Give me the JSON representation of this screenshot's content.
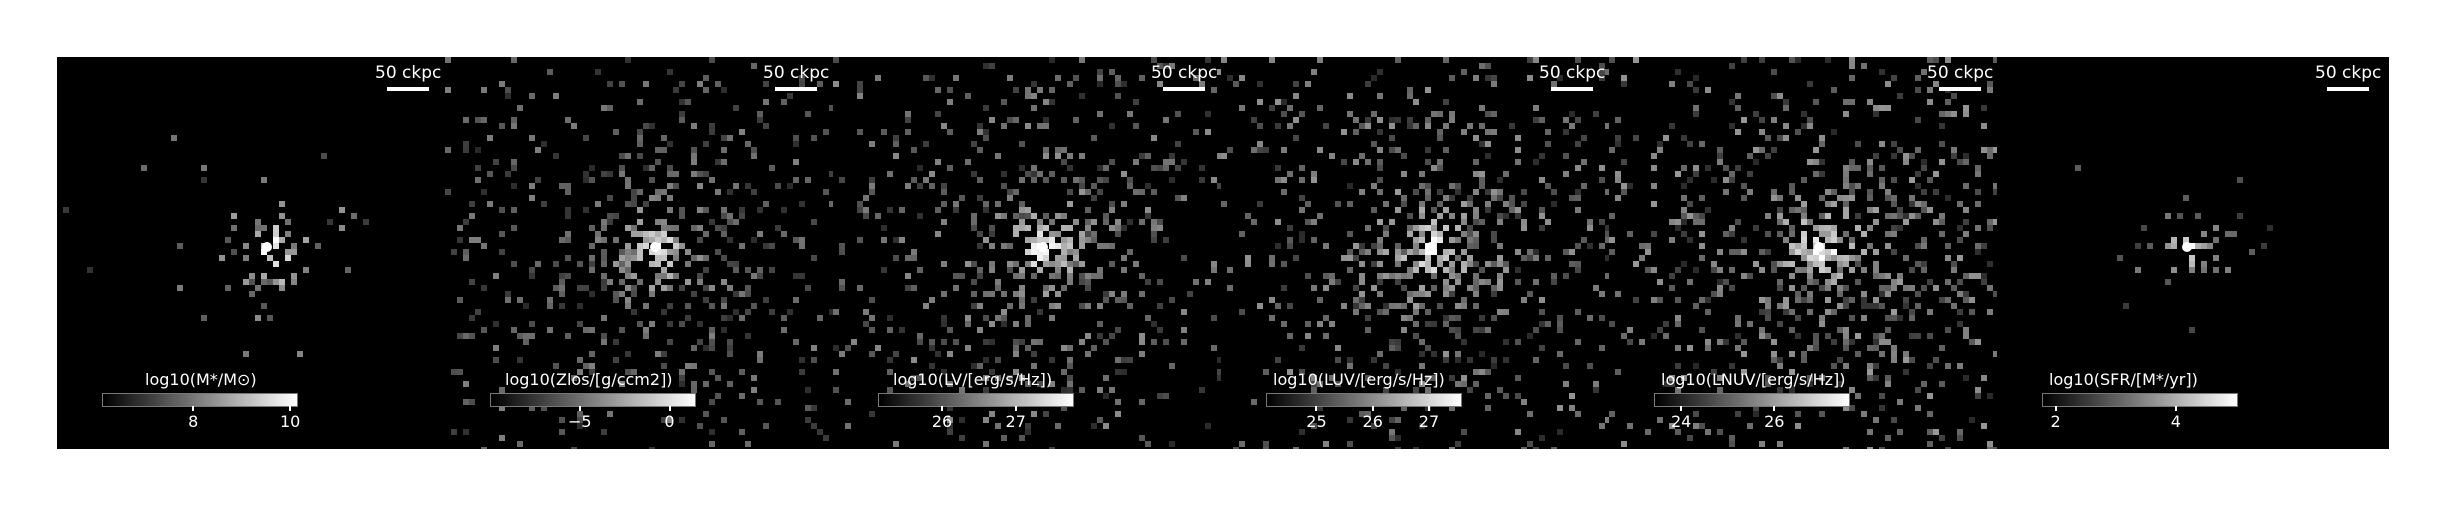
{
  "figure": {
    "panels": [
      {
        "scale_label": "50 ckpc",
        "colorbar_label": "log10(M*/M⊙)",
        "colorbar_ticks": [
          "8",
          "10"
        ],
        "tick_positions": [
          0.47,
          0.97
        ],
        "brightness": 0.9,
        "spread": 45,
        "clumpiness": 0.3
      },
      {
        "scale_label": "50 ckpc",
        "colorbar_label": "log10(Zlos/[g/ccm2])",
        "colorbar_ticks": [
          "−5",
          "0"
        ],
        "tick_positions": [
          0.44,
          0.88
        ],
        "brightness": 0.75,
        "spread": 120,
        "clumpiness": 0.7
      },
      {
        "scale_label": "50 ckpc",
        "colorbar_label": "log10(LV/[erg/s/Hz])",
        "colorbar_ticks": [
          "26",
          "27"
        ],
        "tick_positions": [
          0.33,
          0.71
        ],
        "brightness": 0.85,
        "spread": 115,
        "clumpiness": 0.8
      },
      {
        "scale_label": "50 ckpc",
        "colorbar_label": "log10(LUV/[erg/s/Hz])",
        "colorbar_ticks": [
          "25",
          "26",
          "27"
        ],
        "tick_positions": [
          0.26,
          0.55,
          0.84
        ],
        "brightness": 0.9,
        "spread": 120,
        "clumpiness": 0.85
      },
      {
        "scale_label": "50 ckpc",
        "colorbar_label": "log10(LNUV/[erg/s/Hz])",
        "colorbar_ticks": [
          "24",
          "26"
        ],
        "tick_positions": [
          0.14,
          0.62
        ],
        "brightness": 0.95,
        "spread": 125,
        "clumpiness": 0.9
      },
      {
        "scale_label": "50 ckpc",
        "colorbar_label": "log10(SFR/[M*/yr])",
        "colorbar_ticks": [
          "2",
          "4"
        ],
        "tick_positions": [
          0.07,
          0.69
        ],
        "brightness": 0.6,
        "spread": 30,
        "clumpiness": 0.2
      }
    ]
  }
}
